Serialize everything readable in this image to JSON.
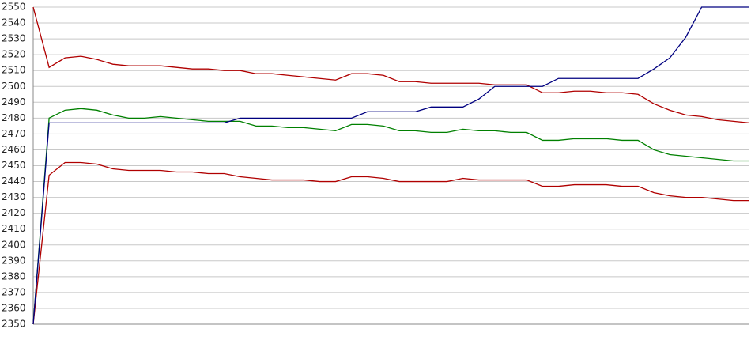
{
  "chart_data": {
    "type": "line",
    "categories": [
      null,
      null,
      null,
      null,
      null,
      null,
      null,
      null,
      null,
      null,
      null,
      null,
      null,
      null,
      null,
      null,
      null,
      null,
      null,
      null,
      null,
      null,
      null,
      null,
      null,
      null,
      null,
      null,
      null,
      null,
      null,
      null,
      null,
      null,
      null,
      null,
      null,
      null,
      null,
      null,
      null,
      null,
      null,
      null,
      null,
      null
    ],
    "series": [
      {
        "color": "#b00000",
        "values": [
          2550,
          2512,
          2518,
          2519,
          2517,
          2514,
          2513,
          2513,
          2513,
          2512,
          2511,
          2511,
          2510,
          2510,
          2508,
          2508,
          2507,
          2506,
          2505,
          2504,
          2508,
          2508,
          2507,
          2503,
          2503,
          2502,
          2502,
          2502,
          2502,
          2501,
          2501,
          2501,
          2496,
          2496,
          2497,
          2497,
          2496,
          2496,
          2495,
          2489,
          2485,
          2482,
          2481,
          2479,
          2478,
          2477
        ]
      },
      {
        "color": "#008000",
        "values": [
          2350,
          2480,
          2485,
          2486,
          2485,
          2482,
          2480,
          2480,
          2481,
          2480,
          2479,
          2478,
          2478,
          2478,
          2475,
          2475,
          2474,
          2474,
          2473,
          2472,
          2476,
          2476,
          2475,
          2472,
          2472,
          2471,
          2471,
          2473,
          2472,
          2472,
          2471,
          2471,
          2466,
          2466,
          2467,
          2467,
          2467,
          2466,
          2466,
          2460,
          2457,
          2456,
          2455,
          2454,
          2453,
          2453
        ]
      },
      {
        "color": "#b00000",
        "values": [
          2350,
          2444,
          2452,
          2452,
          2451,
          2448,
          2447,
          2447,
          2447,
          2446,
          2446,
          2445,
          2445,
          2443,
          2442,
          2441,
          2441,
          2441,
          2440,
          2440,
          2443,
          2443,
          2442,
          2440,
          2440,
          2440,
          2440,
          2442,
          2441,
          2441,
          2441,
          2441,
          2437,
          2437,
          2438,
          2438,
          2438,
          2437,
          2437,
          2433,
          2431,
          2430,
          2430,
          2429,
          2428,
          2428
        ]
      },
      {
        "color": "#000080",
        "values": [
          2350,
          2477,
          2477,
          2477,
          2477,
          2477,
          2477,
          2477,
          2477,
          2477,
          2477,
          2477,
          2477,
          2480,
          2480,
          2480,
          2480,
          2480,
          2480,
          2480,
          2480,
          2484,
          2484,
          2484,
          2484,
          2487,
          2487,
          2487,
          2492,
          2500,
          2500,
          2500,
          2500,
          2505,
          2505,
          2505,
          2505,
          2505,
          2505,
          2511,
          2518,
          2531,
          2550,
          2550,
          2550,
          2550
        ]
      }
    ],
    "ylim": [
      2350,
      2550
    ],
    "yticks": [
      2350,
      2360,
      2370,
      2380,
      2390,
      2400,
      2410,
      2420,
      2430,
      2440,
      2450,
      2460,
      2470,
      2480,
      2490,
      2500,
      2510,
      2520,
      2530,
      2540,
      2550
    ],
    "grid": true
  }
}
